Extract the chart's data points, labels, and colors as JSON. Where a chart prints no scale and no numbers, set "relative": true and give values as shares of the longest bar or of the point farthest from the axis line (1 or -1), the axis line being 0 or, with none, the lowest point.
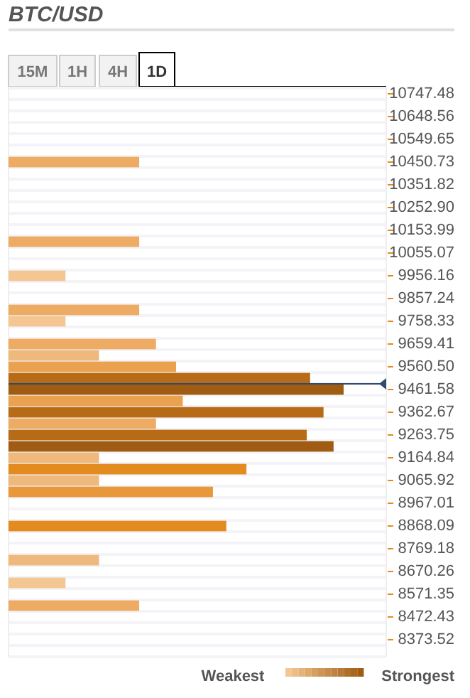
{
  "chart_data": {
    "type": "bar",
    "orientation": "horizontal",
    "relative": true,
    "title": "BTC/USD",
    "annotations": [
      "15M",
      "1H",
      "4H",
      "1D",
      "Weakest",
      "Strongest"
    ],
    "x": [
      10450.73,
      10104.53,
      9956.16,
      9807.79,
      9758.33,
      9659.41,
      9609.96,
      9560.5,
      9511.04,
      9461.58,
      9412.13,
      9362.67,
      9313.21,
      9263.75,
      9214.3,
      9164.84,
      9115.38,
      9065.92,
      9016.47,
      8868.09,
      8719.72,
      8620.81,
      8521.89
    ],
    "values": [
      0.39,
      0.39,
      0.17,
      0.39,
      0.17,
      0.44,
      0.27,
      0.5,
      0.9,
      1,
      0.52,
      0.94,
      0.44,
      0.89,
      0.97,
      0.27,
      0.71,
      0.27,
      0.61,
      0.65,
      0.27,
      0.17,
      0.39
    ],
    "colors": [
      "#edab63",
      "#edab63",
      "#f3c692",
      "#edab63",
      "#f3c692",
      "#edab63",
      "#efb87c",
      "#eaa250",
      "#b86b17",
      "#a05c12",
      "#eaa250",
      "#b86b17",
      "#edab63",
      "#b86b17",
      "#a05c12",
      "#efb87c",
      "#e38b1f",
      "#efb87c",
      "#e8973b",
      "#e38b1f",
      "#efb87c",
      "#f3c692",
      "#edab63"
    ],
    "ylim": [
      8299.45,
      10772.21
    ],
    "yticks": [
      10747.48,
      10648.56,
      10549.65,
      10450.73,
      10351.82,
      {
        "value": 10252.9,
        "label": "10252.90"
      },
      10153.99,
      10055.07,
      9956.16,
      9857.24,
      9758.33,
      9659.41,
      {
        "value": 9560.5,
        "label": "9560.50"
      },
      9461.58,
      9362.67,
      9263.75,
      9164.84,
      9065.92,
      8967.01,
      8868.09,
      8769.18,
      8670.26,
      8571.35,
      8472.43,
      8373.52
    ],
    "grid": true,
    "ref_lines": [
      {
        "axis": "y",
        "value": 9486.31,
        "color": "#2f4a6b"
      }
    ]
  }
}
